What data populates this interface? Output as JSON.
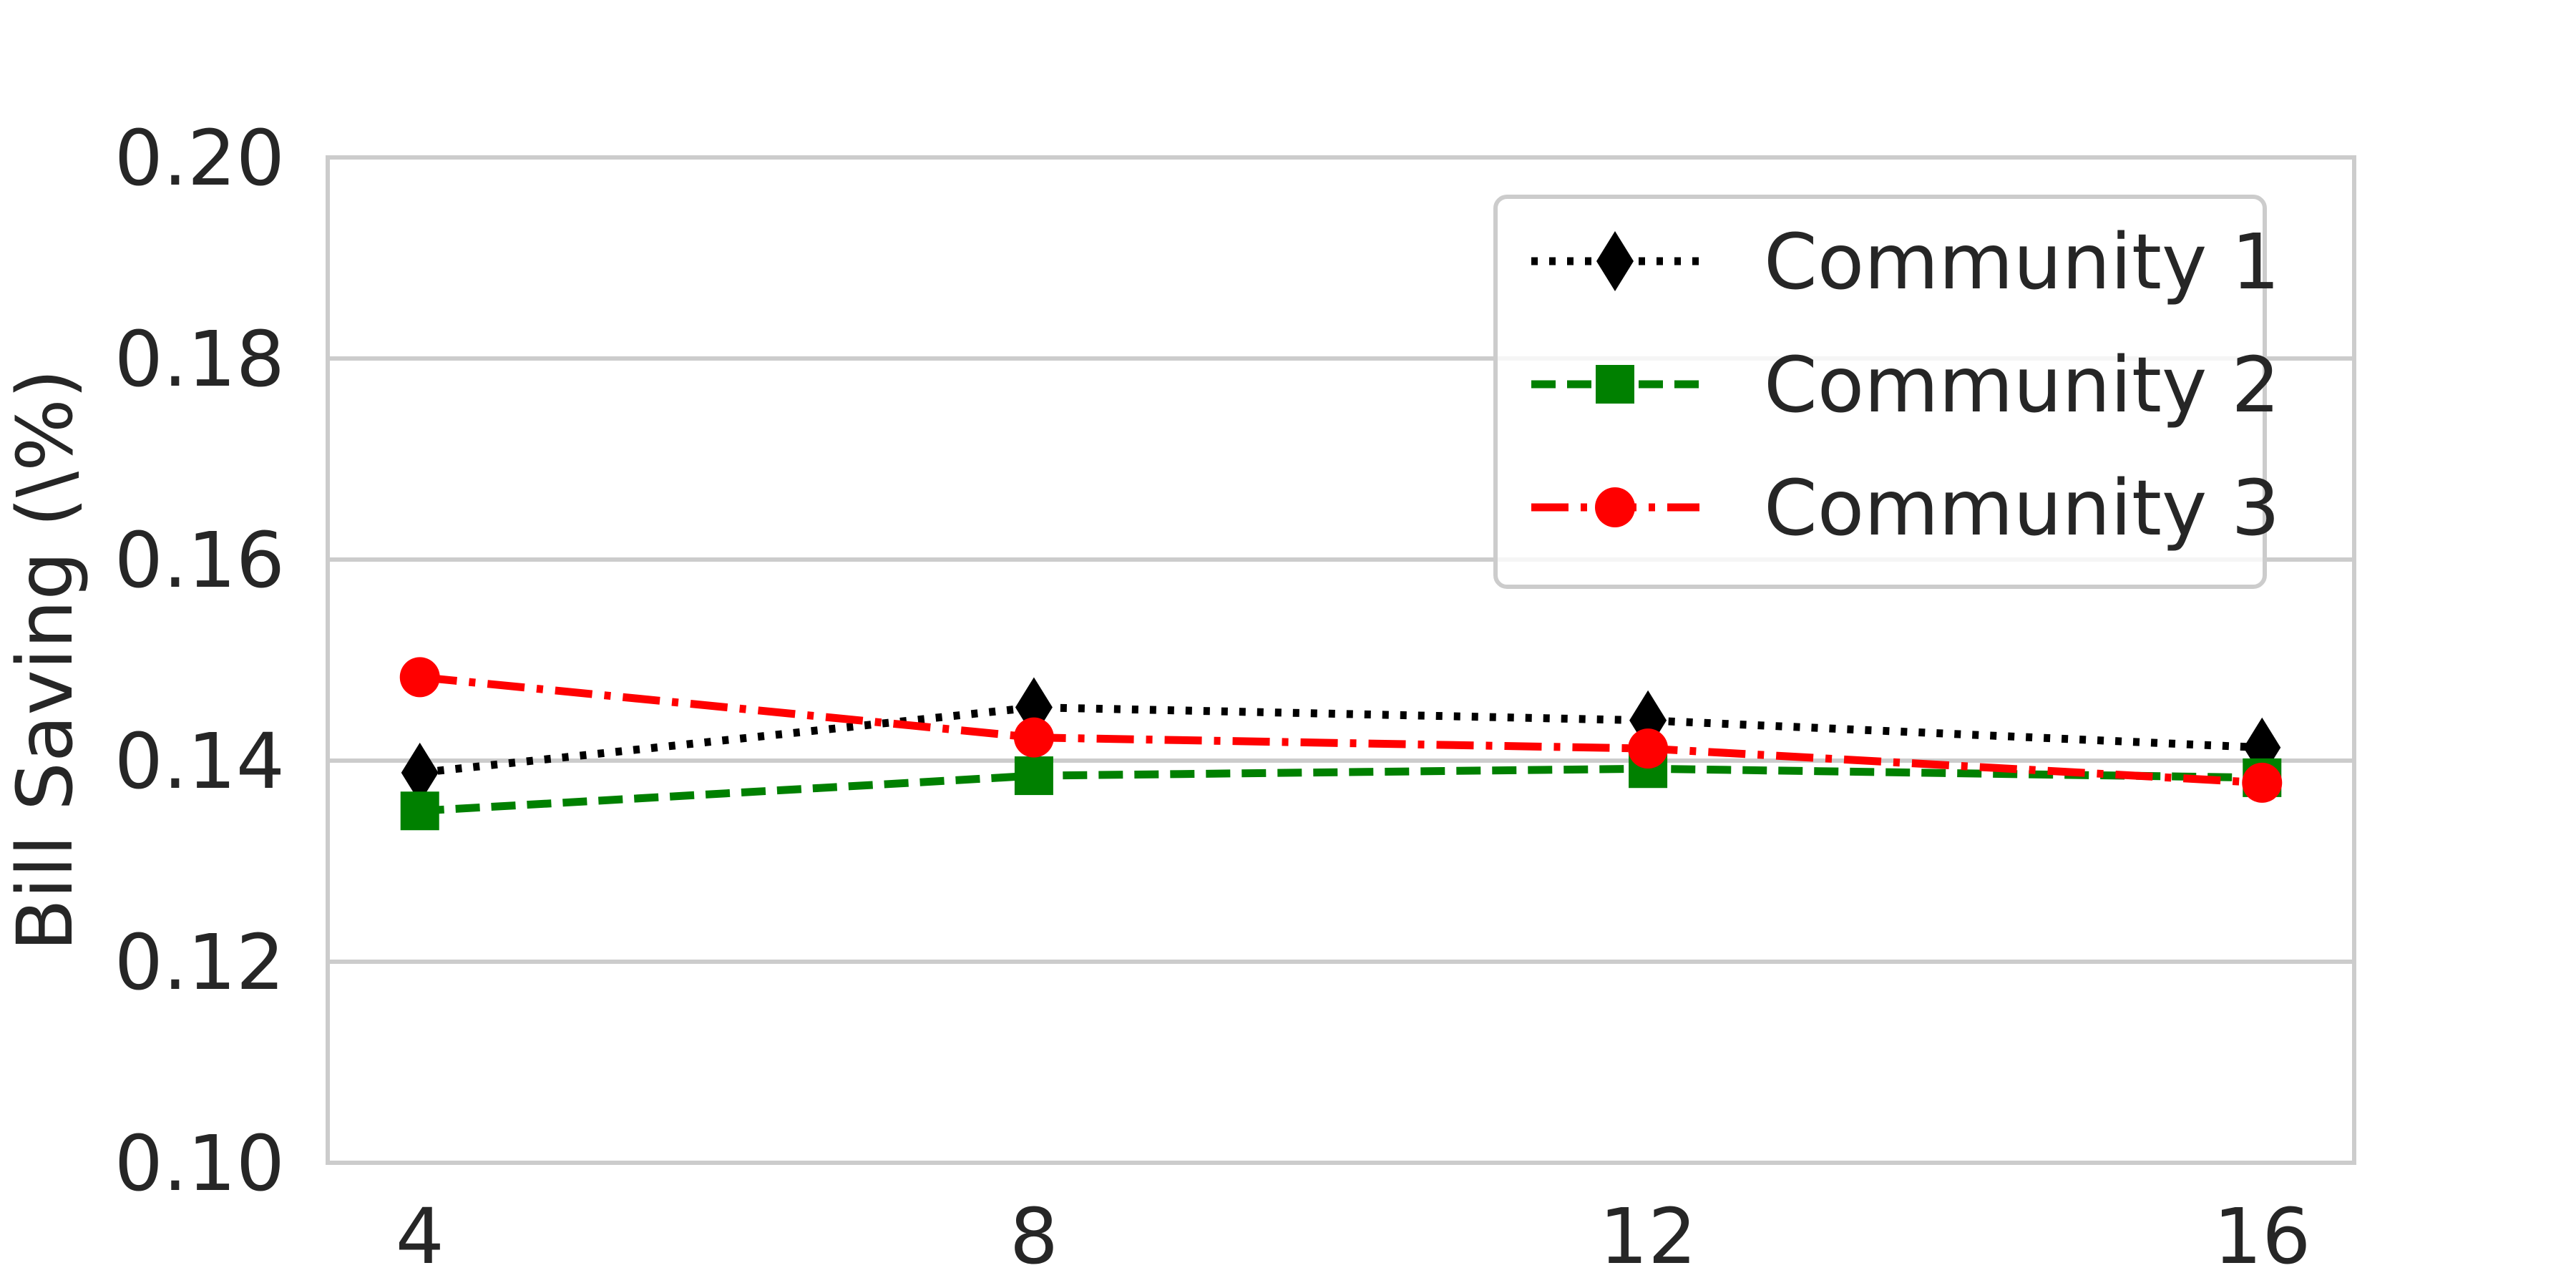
{
  "chart_data": {
    "type": "line",
    "title": "",
    "xlabel": "",
    "ylabel": "Bill Saving (\\%)",
    "x": [
      4,
      8,
      12,
      16
    ],
    "x_ticks": [
      "4",
      "8",
      "12",
      "16"
    ],
    "xlim": [
      3.4,
      16.6
    ],
    "ylim": [
      0.1,
      0.2
    ],
    "y_ticks": [
      "0.10",
      "0.12",
      "0.14",
      "0.16",
      "0.18",
      "0.20"
    ],
    "y_tick_values": [
      0.1,
      0.12,
      0.14,
      0.16,
      0.18,
      0.2
    ],
    "grid": "horizontal",
    "legend_position": "top-right",
    "series": [
      {
        "name": "Community 1",
        "values": [
          0.1388,
          0.1453,
          0.144,
          0.1413
        ],
        "color": "#000000",
        "line_style": "dotted",
        "marker": "diamond"
      },
      {
        "name": "Community 2",
        "values": [
          0.135,
          0.1385,
          0.1392,
          0.1383
        ],
        "color": "#008000",
        "line_style": "dashed",
        "marker": "square"
      },
      {
        "name": "Community 3",
        "values": [
          0.1483,
          0.1423,
          0.1412,
          0.1378
        ],
        "color": "#ff0000",
        "line_style": "dash-dot",
        "marker": "circle"
      }
    ]
  }
}
